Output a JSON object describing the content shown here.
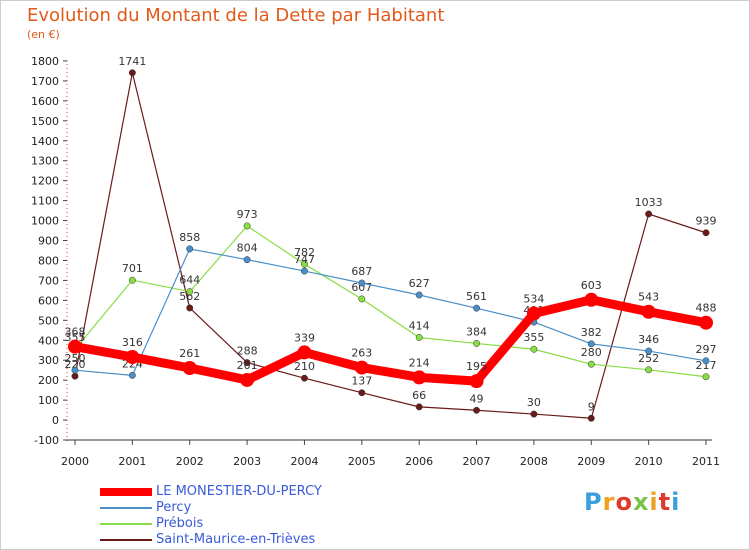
{
  "title": "Evolution du Montant de la Dette par Habitant",
  "unit": "(en €)",
  "logo": "Proxiti",
  "chart_data": {
    "type": "line",
    "title": "Evolution du Montant de la Dette par Habitant",
    "ylabel": "(en €)",
    "xlabel": "",
    "x": [
      "2000",
      "2001",
      "2002",
      "2003",
      "2004",
      "2005",
      "2006",
      "2007",
      "2008",
      "2009",
      "2010",
      "2011"
    ],
    "yticks": [
      -100,
      0,
      100,
      200,
      300,
      400,
      500,
      600,
      700,
      800,
      900,
      1000,
      1100,
      1200,
      1300,
      1400,
      1500,
      1600,
      1700,
      1800
    ],
    "ylim": [
      -100,
      1850
    ],
    "grid": false,
    "legend_position": "bottom-left",
    "series": [
      {
        "name": "LE MONESTIER-DU-PERCY",
        "color": "#ff0000",
        "values": [
          368,
          316,
          261,
          201,
          339,
          263,
          214,
          195,
          534,
          603,
          543,
          488
        ]
      },
      {
        "name": "Percy",
        "color": "#4a8fc9",
        "values": [
          250,
          224,
          858,
          804,
          747,
          687,
          627,
          561,
          491,
          382,
          346,
          297
        ]
      },
      {
        "name": "Prébois",
        "color": "#88dd44",
        "values": [
          355,
          701,
          644,
          973,
          782,
          607,
          414,
          384,
          355,
          280,
          252,
          217
        ]
      },
      {
        "name": "Saint-Maurice-en-Trièves",
        "color": "#6b1a1a",
        "values": [
          220,
          1741,
          562,
          288,
          210,
          137,
          66,
          49,
          30,
          9,
          1033,
          939
        ]
      }
    ]
  }
}
